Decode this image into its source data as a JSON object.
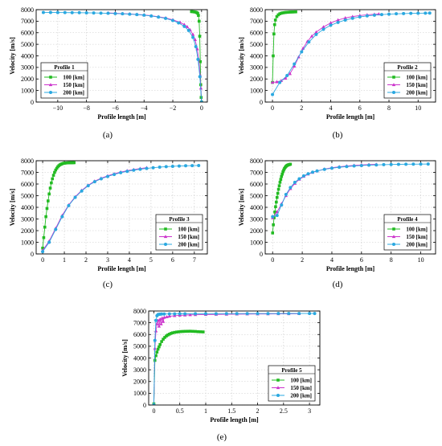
{
  "legend_title_prefix": "Profile",
  "ylabel": "Velocity [m/s]",
  "xlabel": "Profile length [m]",
  "series_labels": [
    "100 [km]",
    "150 [km]",
    "200 [km]"
  ],
  "series_colors": [
    "#22bb22",
    "#cc33cc",
    "#2aa8e0"
  ],
  "chart_data": [
    {
      "type": "line",
      "panel_label": "(a)",
      "profile_number": "1",
      "xlim": [
        -11.5,
        0.4
      ],
      "ylim": [
        0,
        8000
      ],
      "xticks": [
        -10,
        -8,
        -6,
        -4,
        -2,
        0
      ],
      "xtick_labels": [
        "−10",
        "−8",
        "−6",
        "−4",
        "−2",
        "0"
      ],
      "yticks": [
        0,
        1000,
        2000,
        3000,
        4000,
        5000,
        6000,
        7000,
        8000
      ],
      "legend_position": "bottom-left",
      "series": [
        {
          "name": "100 [km]",
          "x": [
            -0.7,
            -0.6,
            -0.5,
            -0.4,
            -0.33,
            -0.27,
            -0.22,
            -0.17,
            -0.13,
            -0.09,
            -0.06,
            -0.03,
            0.0
          ],
          "y": [
            7830,
            7820,
            7800,
            7780,
            7740,
            7680,
            7500,
            7000,
            5700,
            3500,
            1500,
            400,
            0
          ]
        },
        {
          "name": "150 [km]",
          "x": [
            -6.5,
            -6.0,
            -5.5,
            -5.0,
            -4.5,
            -4.0,
            -3.5,
            -3.0,
            -2.5,
            -2.0,
            -1.5,
            -1.2,
            -1.0,
            -0.8,
            -0.6,
            -0.45,
            -0.3,
            -0.2,
            -0.1,
            -0.05,
            0.0
          ],
          "y": [
            7720,
            7690,
            7660,
            7630,
            7590,
            7540,
            7470,
            7390,
            7280,
            7120,
            6900,
            6700,
            6520,
            6250,
            5850,
            5400,
            4600,
            3700,
            2300,
            1200,
            0
          ]
        },
        {
          "name": "200 [km]",
          "x": [
            -11.0,
            -10.5,
            -10.0,
            -9.5,
            -9.0,
            -8.5,
            -8.0,
            -7.5,
            -7.0,
            -6.5,
            -6.0,
            -5.5,
            -5.0,
            -4.5,
            -4.0,
            -3.5,
            -3.0,
            -2.5,
            -2.0,
            -1.6,
            -1.2,
            -0.9,
            -0.6,
            -0.4,
            -0.25,
            -0.12,
            0.0
          ],
          "y": [
            7760,
            7755,
            7750,
            7745,
            7740,
            7735,
            7725,
            7715,
            7700,
            7685,
            7665,
            7640,
            7610,
            7570,
            7520,
            7450,
            7360,
            7240,
            7060,
            6850,
            6550,
            6200,
            5600,
            4800,
            3700,
            2200,
            0
          ]
        }
      ]
    },
    {
      "type": "line",
      "panel_label": "(b)",
      "profile_number": "2",
      "xlim": [
        -0.5,
        11.2
      ],
      "ylim": [
        0,
        8000
      ],
      "xticks": [
        0,
        2,
        4,
        6,
        8,
        10
      ],
      "xtick_labels": [
        "0",
        "2",
        "4",
        "6",
        "8",
        "10"
      ],
      "yticks": [
        0,
        1000,
        2000,
        3000,
        4000,
        5000,
        6000,
        7000,
        8000
      ],
      "legend_position": "bottom-right",
      "series": [
        {
          "name": "100 [km]",
          "x": [
            0.0,
            0.05,
            0.1,
            0.15,
            0.2,
            0.3,
            0.4,
            0.5,
            0.6,
            0.7,
            0.8,
            0.9,
            1.0,
            1.1,
            1.2,
            1.3,
            1.4,
            1.5,
            1.6
          ],
          "y": [
            1700,
            4000,
            5900,
            6700,
            7100,
            7400,
            7550,
            7640,
            7690,
            7720,
            7740,
            7760,
            7770,
            7780,
            7790,
            7795,
            7800,
            7805,
            7810
          ]
        },
        {
          "name": "150 [km]",
          "x": [
            0.0,
            0.3,
            0.6,
            0.9,
            1.2,
            1.5,
            1.8,
            2.1,
            2.4,
            2.7,
            3.0,
            3.5,
            4.0,
            4.5,
            5.0,
            5.5,
            6.0,
            6.5,
            7.0,
            7.3
          ],
          "y": [
            1700,
            1750,
            1850,
            2050,
            2450,
            3100,
            3900,
            4650,
            5250,
            5700,
            6050,
            6500,
            6850,
            7100,
            7280,
            7400,
            7490,
            7550,
            7600,
            7620
          ]
        },
        {
          "name": "200 [km]",
          "x": [
            0.0,
            0.5,
            1.0,
            1.5,
            2.0,
            2.5,
            3.0,
            3.5,
            4.0,
            4.5,
            5.0,
            5.5,
            6.0,
            6.5,
            7.0,
            7.5,
            8.0,
            8.5,
            9.0,
            9.5,
            10.0,
            10.5,
            10.8
          ],
          "y": [
            650,
            1700,
            2300,
            3300,
            4350,
            5200,
            5850,
            6300,
            6650,
            6900,
            7100,
            7250,
            7370,
            7460,
            7520,
            7570,
            7610,
            7640,
            7660,
            7680,
            7690,
            7700,
            7705
          ]
        }
      ]
    },
    {
      "type": "line",
      "panel_label": "(c)",
      "profile_number": "3",
      "xlim": [
        -0.3,
        7.6
      ],
      "ylim": [
        0,
        8000
      ],
      "xticks": [
        0,
        1,
        2,
        3,
        4,
        5,
        6,
        7
      ],
      "xtick_labels": [
        "0",
        "1",
        "2",
        "3",
        "4",
        "5",
        "6",
        "7"
      ],
      "yticks": [
        0,
        1000,
        2000,
        3000,
        4000,
        5000,
        6000,
        7000,
        8000
      ],
      "legend_position": "bottom-right",
      "series": [
        {
          "name": "100 [km]",
          "x": [
            0.0,
            0.05,
            0.1,
            0.15,
            0.2,
            0.25,
            0.3,
            0.35,
            0.4,
            0.45,
            0.5,
            0.55,
            0.6,
            0.65,
            0.7,
            0.75,
            0.8,
            0.85,
            0.9,
            0.95,
            1.0,
            1.05,
            1.1,
            1.15,
            1.2,
            1.25,
            1.3,
            1.35,
            1.4,
            1.45
          ],
          "y": [
            500,
            1400,
            2300,
            3200,
            3900,
            4550,
            5150,
            5650,
            6100,
            6450,
            6750,
            7000,
            7200,
            7350,
            7480,
            7580,
            7650,
            7700,
            7740,
            7770,
            7790,
            7800,
            7810,
            7815,
            7820,
            7822,
            7825,
            7826,
            7828,
            7830
          ]
        },
        {
          "name": "150 [km]",
          "x": [
            0.0,
            0.3,
            0.6,
            0.9,
            1.2,
            1.5,
            1.8,
            2.1,
            2.4,
            2.7,
            3.0,
            3.3,
            3.6,
            3.9,
            4.2,
            4.5,
            4.8
          ],
          "y": [
            300,
            1100,
            2200,
            3300,
            4200,
            4900,
            5450,
            5900,
            6250,
            6500,
            6700,
            6880,
            7020,
            7140,
            7240,
            7330,
            7400
          ]
        },
        {
          "name": "200 [km]",
          "x": [
            0.0,
            0.3,
            0.6,
            0.9,
            1.2,
            1.5,
            1.8,
            2.1,
            2.4,
            2.7,
            3.0,
            3.3,
            3.6,
            3.9,
            4.2,
            4.5,
            4.8,
            5.1,
            5.4,
            5.7,
            6.0,
            6.3,
            6.6,
            6.9,
            7.2
          ],
          "y": [
            200,
            1000,
            2100,
            3200,
            4150,
            4850,
            5400,
            5850,
            6200,
            6450,
            6650,
            6820,
            6970,
            7090,
            7190,
            7270,
            7340,
            7400,
            7450,
            7490,
            7520,
            7545,
            7565,
            7580,
            7590
          ]
        }
      ]
    },
    {
      "type": "line",
      "panel_label": "(d)",
      "profile_number": "4",
      "xlim": [
        -0.5,
        11.0
      ],
      "ylim": [
        0,
        8000
      ],
      "xticks": [
        0,
        2,
        4,
        6,
        8,
        10
      ],
      "xtick_labels": [
        "0",
        "2",
        "4",
        "6",
        "8",
        "10"
      ],
      "yticks": [
        0,
        1000,
        2000,
        3000,
        4000,
        5000,
        6000,
        7000,
        8000
      ],
      "legend_position": "bottom-right",
      "series": [
        {
          "name": "100 [km]",
          "x": [
            0.0,
            0.05,
            0.1,
            0.15,
            0.2,
            0.25,
            0.3,
            0.35,
            0.4,
            0.45,
            0.5,
            0.55,
            0.6,
            0.65,
            0.7,
            0.75,
            0.8,
            0.85,
            0.9,
            0.95,
            1.0,
            1.05,
            1.1,
            1.15,
            1.2
          ],
          "y": [
            1800,
            2500,
            3100,
            3600,
            4050,
            4450,
            4850,
            5200,
            5550,
            5850,
            6150,
            6400,
            6650,
            6850,
            7050,
            7200,
            7330,
            7430,
            7510,
            7570,
            7610,
            7640,
            7660,
            7680,
            7700
          ]
        },
        {
          "name": "150 [km]",
          "x": [
            0.0,
            0.3,
            0.6,
            0.9,
            1.2,
            1.5,
            1.8,
            2.1,
            2.4,
            2.7,
            3.0,
            3.5,
            4.0,
            4.5,
            5.0,
            5.5,
            6.0,
            6.5,
            7.0
          ],
          "y": [
            3100,
            3600,
            4300,
            5000,
            5600,
            6050,
            6400,
            6650,
            6850,
            7000,
            7120,
            7280,
            7400,
            7480,
            7550,
            7600,
            7640,
            7670,
            7690
          ]
        },
        {
          "name": "200 [km]",
          "x": [
            0.0,
            0.3,
            0.6,
            0.9,
            1.2,
            1.5,
            1.8,
            2.1,
            2.4,
            2.7,
            3.0,
            3.5,
            4.0,
            4.5,
            5.0,
            5.5,
            6.0,
            6.5,
            7.0,
            7.5,
            8.0,
            8.5,
            9.0,
            9.5,
            10.0,
            10.5
          ],
          "y": [
            3200,
            3300,
            4200,
            5100,
            5700,
            6150,
            6450,
            6700,
            6880,
            7020,
            7120,
            7260,
            7360,
            7440,
            7500,
            7550,
            7590,
            7620,
            7640,
            7660,
            7675,
            7690,
            7700,
            7705,
            7710,
            7715
          ]
        }
      ]
    },
    {
      "type": "line",
      "panel_label": "(e)",
      "profile_number": "5",
      "xlim": [
        -0.1,
        3.2
      ],
      "ylim": [
        0,
        8000
      ],
      "xticks": [
        0,
        0.5,
        1,
        1.5,
        2,
        2.5,
        3
      ],
      "xtick_labels": [
        "0",
        "0.5",
        "1",
        "1.5",
        "2",
        "2.5",
        "3"
      ],
      "yticks": [
        0,
        1000,
        2000,
        3000,
        4000,
        5000,
        6000,
        7000,
        8000
      ],
      "legend_position": "bottom-right",
      "series": [
        {
          "name": "100 [km]",
          "x": [
            0.0,
            0.02,
            0.04,
            0.06,
            0.08,
            0.1,
            0.12,
            0.15,
            0.18,
            0.21,
            0.24,
            0.27,
            0.3,
            0.33,
            0.36,
            0.4,
            0.44,
            0.48,
            0.52,
            0.56,
            0.6,
            0.65,
            0.7,
            0.75,
            0.8,
            0.85,
            0.9,
            0.95
          ],
          "y": [
            100,
            3800,
            4200,
            4500,
            4750,
            4950,
            5150,
            5400,
            5600,
            5750,
            5870,
            5960,
            6030,
            6090,
            6140,
            6180,
            6210,
            6230,
            6250,
            6260,
            6270,
            6275,
            6280,
            6270,
            6260,
            6240,
            6230,
            6220
          ]
        },
        {
          "name": "150 [km]",
          "x": [
            0.0,
            0.02,
            0.04,
            0.06,
            0.08,
            0.1,
            0.12,
            0.14,
            0.16,
            0.18,
            0.2,
            0.25,
            0.3,
            0.4,
            0.5,
            0.6,
            0.7,
            0.8,
            1.0,
            1.2,
            1.4,
            1.6,
            1.8,
            2.0,
            2.2,
            2.4,
            2.6,
            2.8
          ],
          "y": [
            0,
            4800,
            6300,
            6900,
            7200,
            6700,
            7300,
            6900,
            7400,
            7100,
            7450,
            7500,
            7550,
            7600,
            7630,
            7650,
            7670,
            7680,
            7700,
            7710,
            7720,
            7730,
            7740,
            7745,
            7750,
            7755,
            7760,
            7765
          ]
        },
        {
          "name": "200 [km]",
          "x": [
            0.0,
            0.02,
            0.04,
            0.06,
            0.08,
            0.1,
            0.12,
            0.15,
            0.2,
            0.3,
            0.4,
            0.5,
            0.6,
            0.8,
            1.0,
            1.2,
            1.4,
            1.6,
            1.8,
            2.0,
            2.2,
            2.4,
            2.6,
            2.8,
            3.0,
            3.1
          ],
          "y": [
            0,
            5500,
            7200,
            7600,
            7700,
            7720,
            7730,
            7740,
            7745,
            7750,
            7755,
            7760,
            7760,
            7765,
            7770,
            7770,
            7775,
            7775,
            7780,
            7780,
            7782,
            7784,
            7786,
            7788,
            7790,
            7790
          ]
        }
      ]
    }
  ]
}
